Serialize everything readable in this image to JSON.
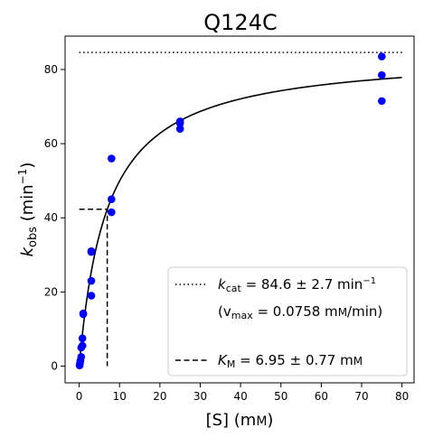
{
  "chart_data": {
    "type": "scatter",
    "title": "Q124C",
    "xlabel": {
      "main": "[S] (m",
      "unit_small": "M",
      "close": ")"
    },
    "ylabel": {
      "k": "k",
      "sub": "obs",
      "rest": " (min",
      "sup": "−1",
      "close": ")"
    },
    "xlim": [
      -3.5,
      83
    ],
    "ylim": [
      -4.5,
      89
    ],
    "x_ticks": [
      0,
      10,
      20,
      30,
      40,
      50,
      60,
      70,
      80
    ],
    "y_ticks": [
      0,
      20,
      40,
      60,
      80
    ],
    "grid": false,
    "legend_position": "bottom-right",
    "points": {
      "color": "#0000ff",
      "x": [
        0.1,
        0.2,
        0.3,
        0.5,
        0.5,
        0.8,
        0.8,
        1.0,
        1.0,
        3.0,
        3.0,
        3.0,
        3.0,
        8.0,
        8.0,
        8.0,
        25.0,
        25.0,
        25.0,
        75.0,
        75.0,
        75.0
      ],
      "y": [
        0.2,
        0.8,
        1.5,
        2.5,
        5.0,
        5.5,
        7.5,
        14.0,
        14.2,
        19.0,
        23.0,
        31.0,
        30.8,
        41.5,
        45.0,
        56.0,
        64.0,
        65.5,
        66.0,
        71.5,
        78.5,
        83.5
      ]
    },
    "fit": {
      "model": "michaelis-menten",
      "kcat": 84.6,
      "km": 6.95,
      "x_range": [
        0,
        80
      ],
      "color": "#000000"
    },
    "kcat_line": {
      "y": 84.6,
      "x_range": [
        0,
        80
      ],
      "style": "dotted"
    },
    "km_line": {
      "x": 6.95,
      "y": 42.3,
      "style": "dashed"
    },
    "legend": {
      "kcat": {
        "k": "k",
        "sub": "cat",
        "value": " = 84.6 ± 2.7 min",
        "sup": "−1"
      },
      "vmax": {
        "open": "(v",
        "sub": "max",
        "value": " = 0.0758 m",
        "unit_small": "M",
        "close": "/min)"
      },
      "km": {
        "k": "K",
        "sub": "M",
        "value": " = 6.95 ± 0.77 m",
        "unit_small": "M"
      }
    }
  }
}
